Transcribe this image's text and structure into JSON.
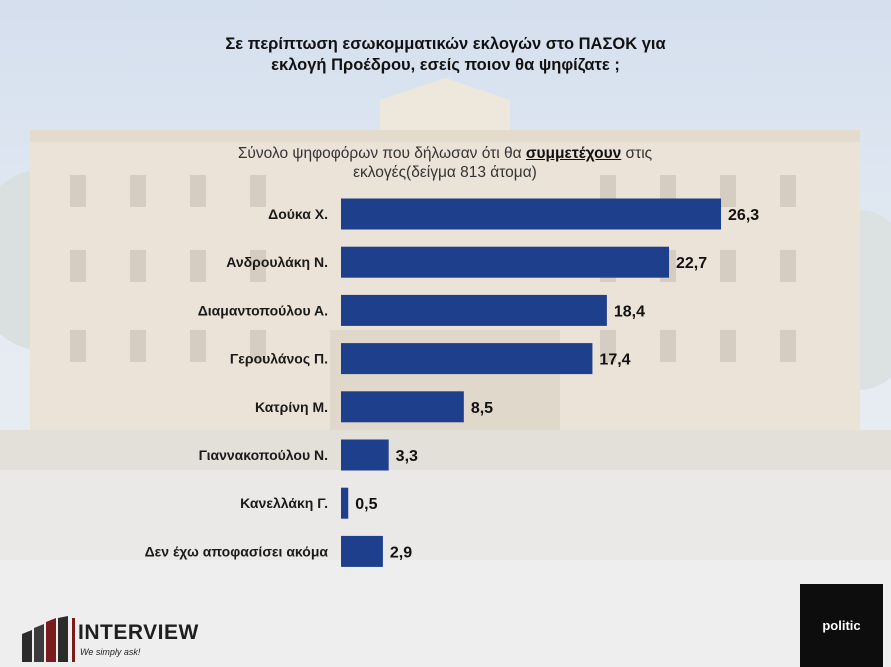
{
  "title_lines": [
    "Σε περίπτωση εσωκομματικών εκλογών στο ΠΑΣΟΚ για",
    "εκλογή Προέδρου, εσείς ποιον θα ψηφίζατε ;"
  ],
  "subtitle": {
    "before": "Σύνολο ψηφοφόρων που δήλωσαν ότι θα ",
    "emphasis": "συμμετέχουν",
    "after": " στις",
    "line2": "εκλογές(δείγμα 813 άτομα)"
  },
  "chart_data": {
    "type": "bar",
    "orientation": "horizontal",
    "categories": [
      "Δούκα Χ.",
      "Ανδρουλάκη Ν.",
      "Διαμαντοπούλου Α.",
      "Γερουλάνος Π.",
      "Κατρίνη Μ.",
      "Γιαννακοπούλου Ν.",
      "Κανελλάκη Γ.",
      "Δεν έχω αποφασίσει ακόμα"
    ],
    "values": [
      26.3,
      22.7,
      18.4,
      17.4,
      8.5,
      3.3,
      0.5,
      2.9
    ],
    "value_labels": [
      "26,3",
      "22,7",
      "18,4",
      "17,4",
      "8,5",
      "3,3",
      "0,5",
      "2,9"
    ],
    "xlim": [
      0,
      28
    ],
    "grid": false,
    "legend": "none",
    "bar_color": "#1e3f8b"
  },
  "logos": {
    "left_name": "INTERVIEW",
    "left_tagline": "We simply ask!",
    "right_name": "politic"
  }
}
